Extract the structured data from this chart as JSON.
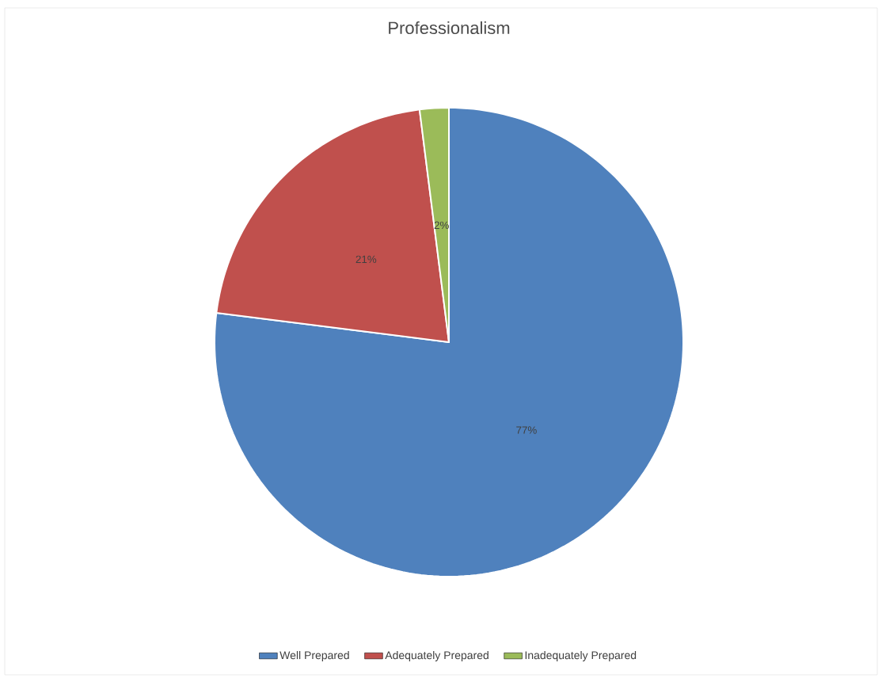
{
  "chart_data": {
    "type": "pie",
    "title": "Professionalism",
    "categories": [
      "Well Prepared",
      "Adequately Prepared",
      "Inadequately Prepared"
    ],
    "values": [
      77,
      21,
      2
    ],
    "colors": [
      "#4f81bd",
      "#c0504d",
      "#9bbb59"
    ],
    "value_labels": [
      "77%",
      "21%",
      "2%"
    ],
    "legend": "bottom"
  }
}
